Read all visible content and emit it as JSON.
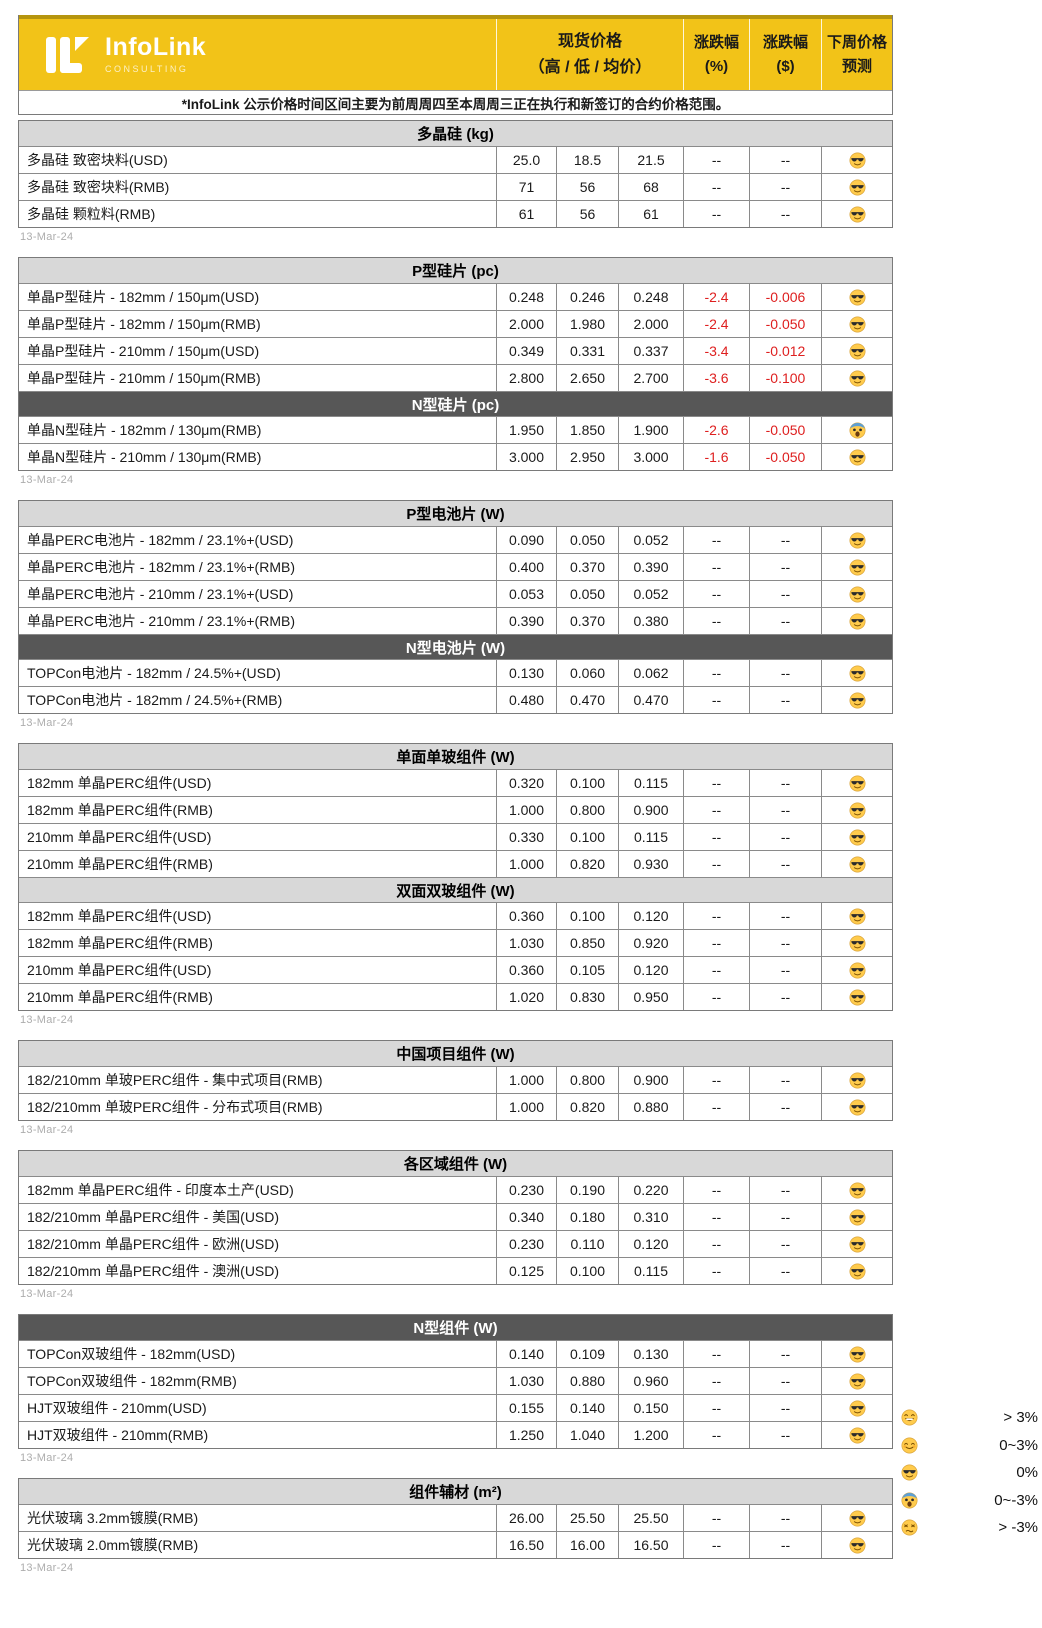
{
  "header": {
    "logo": {
      "brand": "InfoLink",
      "sub": "CONSULTING"
    },
    "columns": {
      "spot_price": "现货价格",
      "spot_price_sub": "（高 / 低 / 均价）",
      "change_pct_line1": "涨跌幅",
      "change_pct_line2": "(%)",
      "change_usd_line1": "涨跌幅",
      "change_usd_line2": "($)",
      "forecast_line1": "下周价格",
      "forecast_line2": "预测"
    },
    "note": "*InfoLink 公示价格时间区间主要为前周周四至本周周三正在执行和新签订的合约价格范围。"
  },
  "colors": {
    "brand_yellow": "#F2C318",
    "section_light": "#D8D8D8",
    "section_dark": "#575757",
    "negative_red": "#DE1F1F",
    "grid_border": "#8A8A8A",
    "date_gray": "#ADADAD"
  },
  "blocks": [
    {
      "date": "13-Mar-24",
      "sections": [
        {
          "title": "多晶硅 (kg)",
          "variant": "light",
          "rows": [
            {
              "label": "多晶硅 致密块料(USD)",
              "high": "25.0",
              "low": "18.5",
              "avg": "21.5",
              "chg_pct": "--",
              "chg_usd": "--",
              "forecast": "sunglasses"
            },
            {
              "label": "多晶硅 致密块料(RMB)",
              "high": "71",
              "low": "56",
              "avg": "68",
              "chg_pct": "--",
              "chg_usd": "--",
              "forecast": "sunglasses"
            },
            {
              "label": "多晶硅 颗粒料(RMB)",
              "high": "61",
              "low": "56",
              "avg": "61",
              "chg_pct": "--",
              "chg_usd": "--",
              "forecast": "sunglasses"
            }
          ]
        }
      ]
    },
    {
      "date": "13-Mar-24",
      "sections": [
        {
          "title": "P型硅片 (pc)",
          "variant": "light",
          "rows": [
            {
              "label": "单晶P型硅片 - 182mm / 150μm(USD)",
              "high": "0.248",
              "low": "0.246",
              "avg": "0.248",
              "chg_pct": "-2.4",
              "chg_usd": "-0.006",
              "forecast": "sunglasses"
            },
            {
              "label": "单晶P型硅片 - 182mm / 150μm(RMB)",
              "high": "2.000",
              "low": "1.980",
              "avg": "2.000",
              "chg_pct": "-2.4",
              "chg_usd": "-0.050",
              "forecast": "sunglasses"
            },
            {
              "label": "单晶P型硅片 - 210mm / 150μm(USD)",
              "high": "0.349",
              "low": "0.331",
              "avg": "0.337",
              "chg_pct": "-3.4",
              "chg_usd": "-0.012",
              "forecast": "sunglasses"
            },
            {
              "label": "单晶P型硅片 - 210mm / 150μm(RMB)",
              "high": "2.800",
              "low": "2.650",
              "avg": "2.700",
              "chg_pct": "-3.6",
              "chg_usd": "-0.100",
              "forecast": "sunglasses"
            }
          ]
        },
        {
          "title": "N型硅片 (pc)",
          "variant": "dark",
          "rows": [
            {
              "label": "单晶N型硅片 - 182mm / 130μm(RMB)",
              "high": "1.950",
              "low": "1.850",
              "avg": "1.900",
              "chg_pct": "-2.6",
              "chg_usd": "-0.050",
              "forecast": "scream"
            },
            {
              "label": "单晶N型硅片 - 210mm / 130μm(RMB)",
              "high": "3.000",
              "low": "2.950",
              "avg": "3.000",
              "chg_pct": "-1.6",
              "chg_usd": "-0.050",
              "forecast": "sunglasses"
            }
          ]
        }
      ]
    },
    {
      "date": "13-Mar-24",
      "sections": [
        {
          "title": "P型电池片 (W)",
          "variant": "light",
          "rows": [
            {
              "label": "单晶PERC电池片 - 182mm / 23.1%+(USD)",
              "high": "0.090",
              "low": "0.050",
              "avg": "0.052",
              "chg_pct": "--",
              "chg_usd": "--",
              "forecast": "sunglasses"
            },
            {
              "label": "单晶PERC电池片 - 182mm / 23.1%+(RMB)",
              "high": "0.400",
              "low": "0.370",
              "avg": "0.390",
              "chg_pct": "--",
              "chg_usd": "--",
              "forecast": "sunglasses"
            },
            {
              "label": "单晶PERC电池片 - 210mm / 23.1%+(USD)",
              "high": "0.053",
              "low": "0.050",
              "avg": "0.052",
              "chg_pct": "--",
              "chg_usd": "--",
              "forecast": "sunglasses"
            },
            {
              "label": "单晶PERC电池片 - 210mm / 23.1%+(RMB)",
              "high": "0.390",
              "low": "0.370",
              "avg": "0.380",
              "chg_pct": "--",
              "chg_usd": "--",
              "forecast": "sunglasses"
            }
          ]
        },
        {
          "title": "N型电池片 (W)",
          "variant": "dark",
          "rows": [
            {
              "label": "TOPCon电池片 - 182mm / 24.5%+(USD)",
              "high": "0.130",
              "low": "0.060",
              "avg": "0.062",
              "chg_pct": "--",
              "chg_usd": "--",
              "forecast": "sunglasses"
            },
            {
              "label": "TOPCon电池片 - 182mm / 24.5%+(RMB)",
              "high": "0.480",
              "low": "0.470",
              "avg": "0.470",
              "chg_pct": "--",
              "chg_usd": "--",
              "forecast": "sunglasses"
            }
          ]
        }
      ]
    },
    {
      "date": "13-Mar-24",
      "sections": [
        {
          "title": "单面单玻组件 (W)",
          "variant": "light",
          "rows": [
            {
              "label": "182mm 单晶PERC组件(USD)",
              "high": "0.320",
              "low": "0.100",
              "avg": "0.115",
              "chg_pct": "--",
              "chg_usd": "--",
              "forecast": "sunglasses"
            },
            {
              "label": "182mm 单晶PERC组件(RMB)",
              "high": "1.000",
              "low": "0.800",
              "avg": "0.900",
              "chg_pct": "--",
              "chg_usd": "--",
              "forecast": "sunglasses"
            },
            {
              "label": "210mm 单晶PERC组件(USD)",
              "high": "0.330",
              "low": "0.100",
              "avg": "0.115",
              "chg_pct": "--",
              "chg_usd": "--",
              "forecast": "sunglasses"
            },
            {
              "label": "210mm 单晶PERC组件(RMB)",
              "high": "1.000",
              "low": "0.820",
              "avg": "0.930",
              "chg_pct": "--",
              "chg_usd": "--",
              "forecast": "sunglasses"
            }
          ]
        },
        {
          "title": "双面双玻组件 (W)",
          "variant": "light",
          "rows": [
            {
              "label": "182mm 单晶PERC组件(USD)",
              "high": "0.360",
              "low": "0.100",
              "avg": "0.120",
              "chg_pct": "--",
              "chg_usd": "--",
              "forecast": "sunglasses"
            },
            {
              "label": "182mm 单晶PERC组件(RMB)",
              "high": "1.030",
              "low": "0.850",
              "avg": "0.920",
              "chg_pct": "--",
              "chg_usd": "--",
              "forecast": "sunglasses"
            },
            {
              "label": "210mm 单晶PERC组件(USD)",
              "high": "0.360",
              "low": "0.105",
              "avg": "0.120",
              "chg_pct": "--",
              "chg_usd": "--",
              "forecast": "sunglasses"
            },
            {
              "label": "210mm 单晶PERC组件(RMB)",
              "high": "1.020",
              "low": "0.830",
              "avg": "0.950",
              "chg_pct": "--",
              "chg_usd": "--",
              "forecast": "sunglasses"
            }
          ]
        }
      ]
    },
    {
      "date": "13-Mar-24",
      "sections": [
        {
          "title": "中国项目组件 (W)",
          "variant": "light",
          "rows": [
            {
              "label": "182/210mm 单玻PERC组件 - 集中式项目(RMB)",
              "high": "1.000",
              "low": "0.800",
              "avg": "0.900",
              "chg_pct": "--",
              "chg_usd": "--",
              "forecast": "sunglasses"
            },
            {
              "label": "182/210mm 单玻PERC组件 - 分布式项目(RMB)",
              "high": "1.000",
              "low": "0.820",
              "avg": "0.880",
              "chg_pct": "--",
              "chg_usd": "--",
              "forecast": "sunglasses"
            }
          ]
        }
      ]
    },
    {
      "date": "13-Mar-24",
      "sections": [
        {
          "title": "各区域组件 (W)",
          "variant": "light",
          "rows": [
            {
              "label": "182mm 单晶PERC组件 - 印度本土产(USD)",
              "high": "0.230",
              "low": "0.190",
              "avg": "0.220",
              "chg_pct": "--",
              "chg_usd": "--",
              "forecast": "sunglasses"
            },
            {
              "label": "182/210mm 单晶PERC组件 - 美国(USD)",
              "high": "0.340",
              "low": "0.180",
              "avg": "0.310",
              "chg_pct": "--",
              "chg_usd": "--",
              "forecast": "sunglasses"
            },
            {
              "label": "182/210mm 单晶PERC组件 - 欧洲(USD)",
              "high": "0.230",
              "low": "0.110",
              "avg": "0.120",
              "chg_pct": "--",
              "chg_usd": "--",
              "forecast": "sunglasses"
            },
            {
              "label": "182/210mm 单晶PERC组件 - 澳洲(USD)",
              "high": "0.125",
              "low": "0.100",
              "avg": "0.115",
              "chg_pct": "--",
              "chg_usd": "--",
              "forecast": "sunglasses"
            }
          ]
        }
      ]
    },
    {
      "date": "13-Mar-24",
      "sections": [
        {
          "title": "N型组件 (W)",
          "variant": "dark",
          "rows": [
            {
              "label": "TOPCon双玻组件 - 182mm(USD)",
              "high": "0.140",
              "low": "0.109",
              "avg": "0.130",
              "chg_pct": "--",
              "chg_usd": "--",
              "forecast": "sunglasses"
            },
            {
              "label": "TOPCon双玻组件 - 182mm(RMB)",
              "high": "1.030",
              "low": "0.880",
              "avg": "0.960",
              "chg_pct": "--",
              "chg_usd": "--",
              "forecast": "sunglasses"
            },
            {
              "label": "HJT双玻组件 - 210mm(USD)",
              "high": "0.155",
              "low": "0.140",
              "avg": "0.150",
              "chg_pct": "--",
              "chg_usd": "--",
              "forecast": "sunglasses"
            },
            {
              "label": "HJT双玻组件 - 210mm(RMB)",
              "high": "1.250",
              "low": "1.040",
              "avg": "1.200",
              "chg_pct": "--",
              "chg_usd": "--",
              "forecast": "sunglasses"
            }
          ]
        }
      ]
    },
    {
      "date": "13-Mar-24",
      "sections": [
        {
          "title": "组件辅材 (m²)",
          "variant": "light",
          "rows": [
            {
              "label": "光伏玻璃 3.2mm镀膜(RMB)",
              "high": "26.00",
              "low": "25.50",
              "avg": "25.50",
              "chg_pct": "--",
              "chg_usd": "--",
              "forecast": "sunglasses"
            },
            {
              "label": "光伏玻璃 2.0mm镀膜(RMB)",
              "high": "16.50",
              "low": "16.00",
              "avg": "16.50",
              "chg_pct": "--",
              "chg_usd": "--",
              "forecast": "sunglasses"
            }
          ]
        }
      ]
    }
  ],
  "legend": [
    {
      "icon": "grin",
      "label": "> 3%"
    },
    {
      "icon": "smile",
      "label": "0~3%"
    },
    {
      "icon": "sunglasses",
      "label": "0%"
    },
    {
      "icon": "scream",
      "label": "0~-3%"
    },
    {
      "icon": "confounded",
      "label": "> -3%"
    }
  ]
}
